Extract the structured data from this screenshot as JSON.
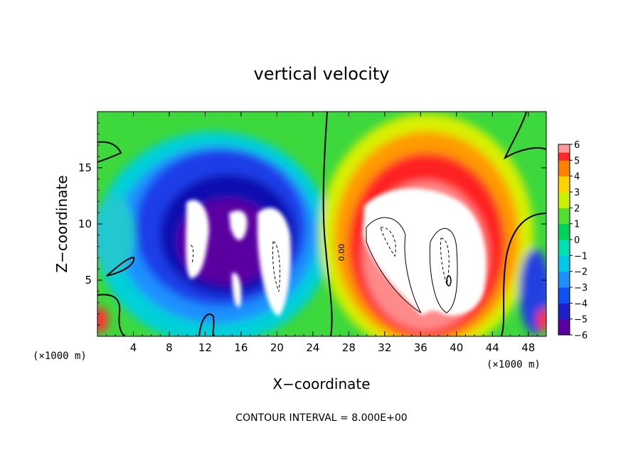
{
  "chart_data": {
    "type": "heatmap",
    "title": "vertical velocity",
    "xlabel": "X−coordinate",
    "ylabel": "Z−coordinate",
    "x_unit_left": "(×1000 m)",
    "x_unit_right": "(×1000 m)",
    "footer": "CONTOUR INTERVAL = 8.000E+00",
    "contour_label": "0.00",
    "xlim": [
      0,
      50
    ],
    "ylim": [
      0,
      20
    ],
    "x_ticks": [
      4,
      8,
      12,
      16,
      20,
      24,
      28,
      32,
      36,
      40,
      44,
      48
    ],
    "x_tick_labels": [
      "4",
      "8",
      "12",
      "16",
      "20",
      "24",
      "28",
      "32",
      "36",
      "40",
      "44",
      "48"
    ],
    "y_ticks": [
      5,
      10,
      15
    ],
    "y_tick_labels": [
      "5",
      "10",
      "15"
    ],
    "colorbar": {
      "min": -6,
      "max": 6,
      "labels": [
        "6",
        "5",
        "4",
        "3",
        "2",
        "1",
        "0",
        "−1",
        "−2",
        "−3",
        "−4",
        "−5",
        "−6"
      ],
      "stops": [
        "#5a00a0",
        "#2020c8",
        "#1050f0",
        "#1e90ff",
        "#00c8e6",
        "#00e0b0",
        "#00d25a",
        "#50e030",
        "#c8f000",
        "#ffd200",
        "#ff8200",
        "#ff2828",
        "#ff9a9a"
      ]
    },
    "features": [
      {
        "name": "downdraft-main",
        "sign": "negative",
        "x_center": 16,
        "z_center": 10,
        "x_extent": [
          6,
          26
        ],
        "z_extent": [
          1,
          18
        ]
      },
      {
        "name": "updraft-main",
        "sign": "positive",
        "x_center": 36,
        "z_center": 9,
        "x_extent": [
          26,
          45
        ],
        "z_extent": [
          0,
          18
        ]
      }
    ]
  }
}
